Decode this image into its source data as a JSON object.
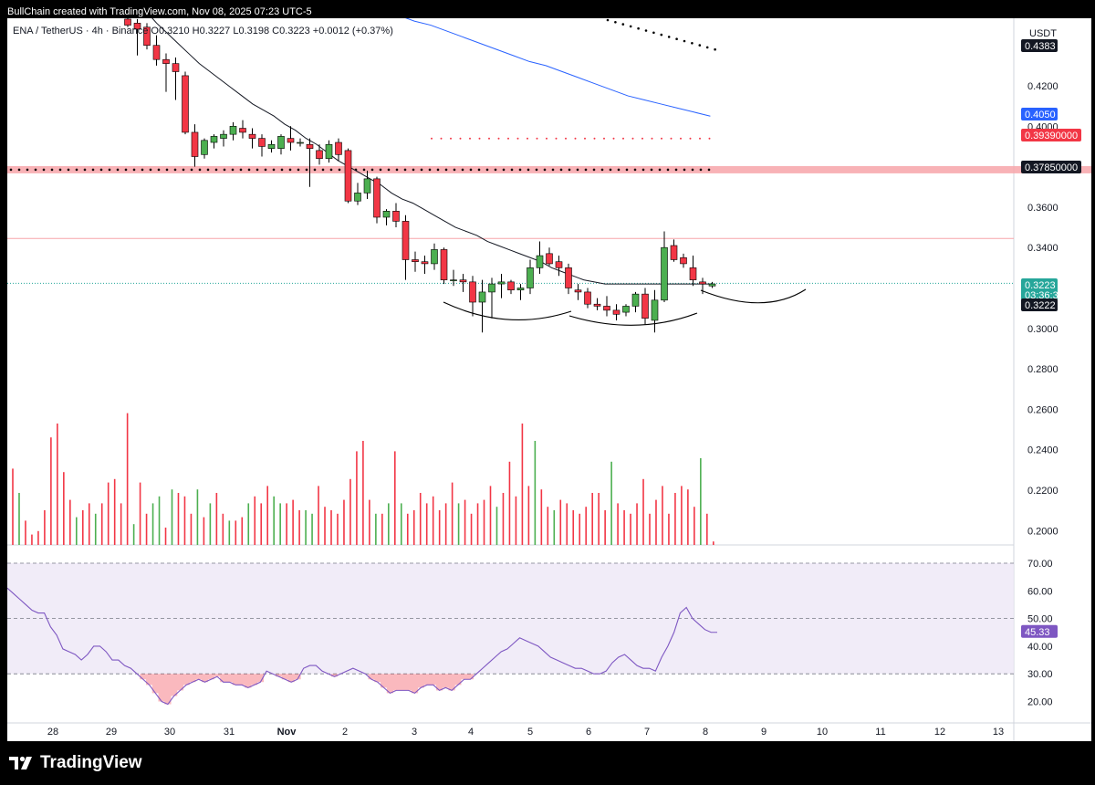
{
  "header": {
    "attribution": "BullChain created with TradingView.com, Nov 08, 2025 07:23 UTC-5",
    "symbol_line": "ENA / TetherUS · 4h · Binance   O0.3210  H0.3227  L0.3198  C0.3223  +0.0012 (+0.37%)"
  },
  "footer": {
    "brand": "TradingView",
    "logo": "tradingview-logo-icon"
  },
  "colors": {
    "up": "#26a69a",
    "up_candle": "#4caf50",
    "down": "#f23645",
    "ma_black": "#131722",
    "ma_blue": "#2962ff",
    "rsi": "#7e57c2",
    "rsi_bg": "#ede7f6",
    "resistance_band": "#f7a5a9"
  },
  "chart_data": {
    "type": "candlestick",
    "currency_label": "USDT",
    "price_axis": {
      "ticks": [
        "0.4383",
        "0.4200",
        "0.4000",
        "0.3600",
        "0.3400",
        "0.3000",
        "0.2800",
        "0.2600",
        "0.2400",
        "0.2200",
        "0.2000"
      ],
      "range": [
        0.195,
        0.455
      ]
    },
    "time_axis": {
      "ticks": [
        "28",
        "29",
        "30",
        "31",
        "Nov",
        "2",
        "3",
        "4",
        "5",
        "6",
        "7",
        "8",
        "9",
        "10",
        "11",
        "12",
        "13"
      ]
    },
    "price_labels": [
      {
        "value": "0.4383",
        "color": "#131722"
      },
      {
        "value": "0.4050",
        "color": "#2962ff"
      },
      {
        "value": "0.39390000",
        "color": "#f23645"
      },
      {
        "value": "0.37850000",
        "color": "#131722"
      },
      {
        "value": "0.3223",
        "sub": "03:36:35",
        "color": "#26a69a"
      },
      {
        "value": "0.3222",
        "color": "#131722"
      }
    ],
    "levels": [
      {
        "name": "resistance band",
        "y": 0.3785,
        "style": "band+dots"
      },
      {
        "name": "red dotted",
        "y": 0.3939,
        "style": "dots"
      },
      {
        "name": "horizontal",
        "y": 0.3445,
        "style": "thin"
      },
      {
        "name": "current price",
        "y": 0.3223,
        "style": "dotted"
      }
    ],
    "candles": [
      {
        "o": 0.453,
        "h": 0.455,
        "l": 0.449,
        "c": 0.45
      },
      {
        "o": 0.451,
        "h": 0.453,
        "l": 0.435,
        "c": 0.448
      },
      {
        "o": 0.449,
        "h": 0.451,
        "l": 0.438,
        "c": 0.44
      },
      {
        "o": 0.44,
        "h": 0.445,
        "l": 0.43,
        "c": 0.433
      },
      {
        "o": 0.433,
        "h": 0.436,
        "l": 0.417,
        "c": 0.431
      },
      {
        "o": 0.431,
        "h": 0.434,
        "l": 0.413,
        "c": 0.427
      },
      {
        "o": 0.425,
        "h": 0.427,
        "l": 0.396,
        "c": 0.397
      },
      {
        "o": 0.397,
        "h": 0.401,
        "l": 0.38,
        "c": 0.385
      },
      {
        "o": 0.386,
        "h": 0.394,
        "l": 0.384,
        "c": 0.393
      },
      {
        "o": 0.392,
        "h": 0.396,
        "l": 0.389,
        "c": 0.395
      },
      {
        "o": 0.394,
        "h": 0.398,
        "l": 0.39,
        "c": 0.396
      },
      {
        "o": 0.396,
        "h": 0.402,
        "l": 0.393,
        "c": 0.4
      },
      {
        "o": 0.399,
        "h": 0.403,
        "l": 0.394,
        "c": 0.397
      },
      {
        "o": 0.396,
        "h": 0.399,
        "l": 0.389,
        "c": 0.394
      },
      {
        "o": 0.394,
        "h": 0.396,
        "l": 0.385,
        "c": 0.39
      },
      {
        "o": 0.389,
        "h": 0.393,
        "l": 0.387,
        "c": 0.391
      },
      {
        "o": 0.389,
        "h": 0.396,
        "l": 0.386,
        "c": 0.395
      },
      {
        "o": 0.394,
        "h": 0.4,
        "l": 0.388,
        "c": 0.392
      },
      {
        "o": 0.392,
        "h": 0.394,
        "l": 0.39,
        "c": 0.392
      },
      {
        "o": 0.391,
        "h": 0.394,
        "l": 0.37,
        "c": 0.389
      },
      {
        "o": 0.388,
        "h": 0.391,
        "l": 0.381,
        "c": 0.384
      },
      {
        "o": 0.384,
        "h": 0.393,
        "l": 0.382,
        "c": 0.391
      },
      {
        "o": 0.392,
        "h": 0.394,
        "l": 0.383,
        "c": 0.386
      },
      {
        "o": 0.388,
        "h": 0.389,
        "l": 0.362,
        "c": 0.363
      },
      {
        "o": 0.363,
        "h": 0.372,
        "l": 0.361,
        "c": 0.367
      },
      {
        "o": 0.367,
        "h": 0.378,
        "l": 0.364,
        "c": 0.374
      },
      {
        "o": 0.374,
        "h": 0.375,
        "l": 0.352,
        "c": 0.355
      },
      {
        "o": 0.355,
        "h": 0.359,
        "l": 0.351,
        "c": 0.358
      },
      {
        "o": 0.358,
        "h": 0.362,
        "l": 0.35,
        "c": 0.353
      },
      {
        "o": 0.353,
        "h": 0.356,
        "l": 0.324,
        "c": 0.334
      },
      {
        "o": 0.334,
        "h": 0.338,
        "l": 0.328,
        "c": 0.333
      },
      {
        "o": 0.333,
        "h": 0.336,
        "l": 0.327,
        "c": 0.332
      },
      {
        "o": 0.332,
        "h": 0.342,
        "l": 0.329,
        "c": 0.339
      },
      {
        "o": 0.339,
        "h": 0.34,
        "l": 0.322,
        "c": 0.324
      },
      {
        "o": 0.324,
        "h": 0.329,
        "l": 0.321,
        "c": 0.324
      },
      {
        "o": 0.324,
        "h": 0.327,
        "l": 0.318,
        "c": 0.323
      },
      {
        "o": 0.323,
        "h": 0.326,
        "l": 0.306,
        "c": 0.313
      },
      {
        "o": 0.313,
        "h": 0.324,
        "l": 0.298,
        "c": 0.318
      },
      {
        "o": 0.318,
        "h": 0.325,
        "l": 0.305,
        "c": 0.322
      },
      {
        "o": 0.322,
        "h": 0.327,
        "l": 0.315,
        "c": 0.323
      },
      {
        "o": 0.323,
        "h": 0.324,
        "l": 0.317,
        "c": 0.319
      },
      {
        "o": 0.319,
        "h": 0.322,
        "l": 0.314,
        "c": 0.32
      },
      {
        "o": 0.32,
        "h": 0.334,
        "l": 0.317,
        "c": 0.33
      },
      {
        "o": 0.33,
        "h": 0.343,
        "l": 0.327,
        "c": 0.336
      },
      {
        "o": 0.337,
        "h": 0.34,
        "l": 0.331,
        "c": 0.332
      },
      {
        "o": 0.333,
        "h": 0.336,
        "l": 0.326,
        "c": 0.33
      },
      {
        "o": 0.33,
        "h": 0.332,
        "l": 0.317,
        "c": 0.32
      },
      {
        "o": 0.319,
        "h": 0.322,
        "l": 0.314,
        "c": 0.318
      },
      {
        "o": 0.318,
        "h": 0.32,
        "l": 0.31,
        "c": 0.312
      },
      {
        "o": 0.312,
        "h": 0.315,
        "l": 0.309,
        "c": 0.311
      },
      {
        "o": 0.311,
        "h": 0.316,
        "l": 0.306,
        "c": 0.309
      },
      {
        "o": 0.309,
        "h": 0.312,
        "l": 0.304,
        "c": 0.307
      },
      {
        "o": 0.308,
        "h": 0.312,
        "l": 0.306,
        "c": 0.311
      },
      {
        "o": 0.311,
        "h": 0.318,
        "l": 0.308,
        "c": 0.317
      },
      {
        "o": 0.317,
        "h": 0.32,
        "l": 0.302,
        "c": 0.305
      },
      {
        "o": 0.304,
        "h": 0.319,
        "l": 0.298,
        "c": 0.314
      },
      {
        "o": 0.314,
        "h": 0.348,
        "l": 0.313,
        "c": 0.34
      },
      {
        "o": 0.341,
        "h": 0.344,
        "l": 0.333,
        "c": 0.334
      },
      {
        "o": 0.335,
        "h": 0.337,
        "l": 0.33,
        "c": 0.332
      },
      {
        "o": 0.33,
        "h": 0.336,
        "l": 0.321,
        "c": 0.324
      },
      {
        "o": 0.323,
        "h": 0.325,
        "l": 0.317,
        "c": 0.322
      },
      {
        "o": 0.321,
        "h": 0.323,
        "l": 0.32,
        "c": 0.322
      }
    ],
    "ma_black": [
      0.492,
      0.487,
      0.483,
      0.478,
      0.473,
      0.468,
      0.463,
      0.457,
      0.451,
      0.446,
      0.441,
      0.436,
      0.431,
      0.427,
      0.423,
      0.419,
      0.415,
      0.411,
      0.408,
      0.405,
      0.401,
      0.398,
      0.394,
      0.391,
      0.387,
      0.383,
      0.38,
      0.377,
      0.374,
      0.371,
      0.367,
      0.364,
      0.362,
      0.359,
      0.356,
      0.353,
      0.35,
      0.348,
      0.346,
      0.343,
      0.341,
      0.339,
      0.337,
      0.335,
      0.333,
      0.33,
      0.328,
      0.326,
      0.324,
      0.323,
      0.322,
      0.322,
      0.322,
      0.322,
      0.322,
      0.322,
      0.322,
      0.322,
      0.322,
      0.322,
      0.322
    ],
    "ma_blue": {
      "x_start": 40,
      "x_end": 72,
      "values": [
        0.455,
        0.452,
        0.45,
        0.447,
        0.444,
        0.441,
        0.438,
        0.435,
        0.432,
        0.43,
        0.427,
        0.424,
        0.421,
        0.418,
        0.415,
        0.413,
        0.411,
        0.409,
        0.407,
        0.405
      ]
    },
    "volume": [
      22,
      15,
      7,
      3,
      4,
      10,
      31,
      35,
      21,
      13,
      8,
      10,
      12,
      9,
      12,
      18,
      19,
      12,
      38,
      6,
      18,
      9,
      12,
      14,
      5,
      16,
      15,
      14,
      9,
      16,
      8,
      12,
      15,
      9,
      7,
      7,
      8,
      12,
      14,
      12,
      17,
      14,
      12,
      12,
      13,
      10,
      10,
      9,
      17,
      11,
      10,
      9,
      13,
      19,
      27,
      30,
      13,
      9,
      9,
      12,
      27,
      12,
      9,
      10,
      15,
      12,
      14,
      10,
      12,
      18,
      12,
      13,
      9,
      12,
      13,
      17,
      11,
      15,
      24,
      14,
      35,
      17,
      30,
      16,
      11,
      10,
      13,
      12,
      10,
      9,
      11,
      15,
      15,
      10,
      24,
      12,
      10,
      9,
      12,
      19,
      9,
      13,
      17,
      9,
      15,
      17,
      16,
      11,
      25,
      9,
      1
    ],
    "volume_colors": "rgrrrrrrrrgrrgrrrrrgrrggrgrrrgrgrrgrrgrrrggrrrggrrrrrrrrrgrgrgrrrrrrrrgrrrrrgrrrrrgrrgrrrrrrrrgrrrrrrrrrrrrrgrrg",
    "rsi": {
      "ticks": [
        "70.00",
        "60.00",
        "50.00",
        "40.00",
        "30.00",
        "20.00"
      ],
      "current": "45.33",
      "values": [
        61,
        59,
        57,
        55,
        53,
        52,
        52,
        47,
        44,
        39,
        38,
        37,
        35,
        37,
        40,
        40,
        38,
        35,
        35,
        33,
        32,
        30,
        28,
        26,
        23,
        20,
        19,
        22,
        24,
        26,
        27,
        28,
        27,
        28,
        29,
        27,
        27,
        26,
        26,
        25,
        26,
        27,
        31,
        30,
        29,
        28,
        27,
        28,
        32,
        33,
        33,
        31,
        30,
        29,
        30,
        31,
        32,
        31,
        30,
        28,
        27,
        25,
        23,
        24,
        24,
        24,
        23,
        25,
        26,
        26,
        24,
        25,
        24,
        26,
        28,
        28,
        30,
        32,
        34,
        36,
        38,
        39,
        41,
        43,
        42,
        41,
        40,
        38,
        36,
        35,
        34,
        33,
        32,
        32,
        31,
        30,
        30,
        31,
        34,
        36,
        37,
        35,
        33,
        32,
        32,
        31,
        36,
        40,
        45,
        52,
        54,
        50,
        48,
        46,
        45,
        45
      ]
    }
  }
}
